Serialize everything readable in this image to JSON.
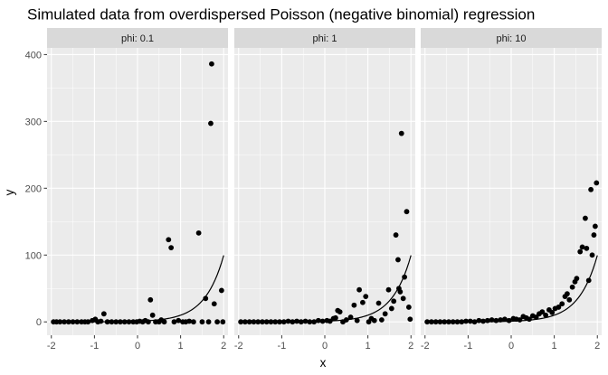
{
  "chart_data": {
    "type": "scatter",
    "title": "Simulated data from overdispersed Poisson (negative binomial) regression",
    "xlabel": "x",
    "ylabel": "y",
    "xlim": [
      -2.1,
      2.1
    ],
    "ylim": [
      -20,
      410
    ],
    "x_ticks": [
      -2,
      -1,
      0,
      1,
      2
    ],
    "y_ticks": [
      0,
      100,
      200,
      300,
      400
    ],
    "grid": true,
    "facet_label_prefix": "phi: ",
    "fit": {
      "type": "line",
      "x_range": [
        -2,
        2
      ],
      "formula": "exp(2.3 * x)"
    },
    "panels": [
      {
        "name": "phi: 0.1",
        "points": [
          [
            -1.95,
            0
          ],
          [
            -1.88,
            0
          ],
          [
            -1.8,
            0
          ],
          [
            -1.7,
            0
          ],
          [
            -1.6,
            0
          ],
          [
            -1.5,
            0
          ],
          [
            -1.4,
            0
          ],
          [
            -1.3,
            0
          ],
          [
            -1.22,
            0
          ],
          [
            -1.15,
            0
          ],
          [
            -1.05,
            2
          ],
          [
            -0.98,
            4
          ],
          [
            -0.92,
            0
          ],
          [
            -0.85,
            1
          ],
          [
            -0.78,
            12
          ],
          [
            -0.7,
            0
          ],
          [
            -0.6,
            0
          ],
          [
            -0.5,
            0
          ],
          [
            -0.4,
            0
          ],
          [
            -0.3,
            0
          ],
          [
            -0.2,
            0
          ],
          [
            -0.1,
            0
          ],
          [
            -0.02,
            0
          ],
          [
            0.05,
            1
          ],
          [
            0.12,
            0
          ],
          [
            0.18,
            2
          ],
          [
            0.25,
            0
          ],
          [
            0.3,
            33
          ],
          [
            0.35,
            10
          ],
          [
            0.42,
            0
          ],
          [
            0.5,
            0
          ],
          [
            0.55,
            3
          ],
          [
            0.62,
            0
          ],
          [
            0.72,
            123
          ],
          [
            0.78,
            111
          ],
          [
            0.85,
            0
          ],
          [
            0.95,
            2
          ],
          [
            1.05,
            0
          ],
          [
            1.12,
            0
          ],
          [
            1.2,
            1
          ],
          [
            1.3,
            0
          ],
          [
            1.42,
            133
          ],
          [
            1.5,
            0
          ],
          [
            1.58,
            35
          ],
          [
            1.65,
            0
          ],
          [
            1.7,
            297
          ],
          [
            1.72,
            386
          ],
          [
            1.78,
            27
          ],
          [
            1.85,
            0
          ],
          [
            1.95,
            47
          ],
          [
            1.98,
            0
          ]
        ]
      },
      {
        "name": "phi: 1",
        "points": [
          [
            -1.95,
            0
          ],
          [
            -1.85,
            0
          ],
          [
            -1.75,
            0
          ],
          [
            -1.65,
            0
          ],
          [
            -1.55,
            0
          ],
          [
            -1.45,
            0
          ],
          [
            -1.35,
            0
          ],
          [
            -1.25,
            0
          ],
          [
            -1.15,
            0
          ],
          [
            -1.05,
            0
          ],
          [
            -0.95,
            0
          ],
          [
            -0.85,
            1
          ],
          [
            -0.75,
            0
          ],
          [
            -0.65,
            1
          ],
          [
            -0.55,
            0
          ],
          [
            -0.45,
            1
          ],
          [
            -0.35,
            0
          ],
          [
            -0.25,
            0
          ],
          [
            -0.15,
            2
          ],
          [
            -0.05,
            1
          ],
          [
            0.05,
            2
          ],
          [
            0.12,
            1
          ],
          [
            0.2,
            5
          ],
          [
            0.25,
            6
          ],
          [
            0.3,
            17
          ],
          [
            0.35,
            15
          ],
          [
            0.42,
            0
          ],
          [
            0.5,
            3
          ],
          [
            0.6,
            7
          ],
          [
            0.68,
            25
          ],
          [
            0.75,
            2
          ],
          [
            0.8,
            48
          ],
          [
            0.88,
            29
          ],
          [
            0.95,
            38
          ],
          [
            1.02,
            0
          ],
          [
            1.08,
            5
          ],
          [
            1.15,
            2
          ],
          [
            1.25,
            28
          ],
          [
            1.32,
            3
          ],
          [
            1.4,
            12
          ],
          [
            1.48,
            48
          ],
          [
            1.55,
            20
          ],
          [
            1.6,
            31
          ],
          [
            1.65,
            130
          ],
          [
            1.7,
            93
          ],
          [
            1.72,
            50
          ],
          [
            1.75,
            45
          ],
          [
            1.78,
            282
          ],
          [
            1.82,
            35
          ],
          [
            1.85,
            67
          ],
          [
            1.9,
            165
          ],
          [
            1.95,
            22
          ],
          [
            1.98,
            4
          ]
        ]
      },
      {
        "name": "phi: 10",
        "points": [
          [
            -1.95,
            0
          ],
          [
            -1.85,
            0
          ],
          [
            -1.75,
            0
          ],
          [
            -1.65,
            0
          ],
          [
            -1.55,
            0
          ],
          [
            -1.45,
            0
          ],
          [
            -1.35,
            0
          ],
          [
            -1.25,
            0
          ],
          [
            -1.15,
            0
          ],
          [
            -1.05,
            1
          ],
          [
            -0.95,
            1
          ],
          [
            -0.85,
            0
          ],
          [
            -0.75,
            2
          ],
          [
            -0.65,
            1
          ],
          [
            -0.55,
            2
          ],
          [
            -0.45,
            3
          ],
          [
            -0.35,
            2
          ],
          [
            -0.25,
            3
          ],
          [
            -0.15,
            4
          ],
          [
            -0.05,
            2
          ],
          [
            0.05,
            5
          ],
          [
            0.12,
            4
          ],
          [
            0.2,
            3
          ],
          [
            0.28,
            8
          ],
          [
            0.35,
            6
          ],
          [
            0.42,
            4
          ],
          [
            0.5,
            9
          ],
          [
            0.58,
            7
          ],
          [
            0.65,
            12
          ],
          [
            0.72,
            15
          ],
          [
            0.8,
            10
          ],
          [
            0.88,
            18
          ],
          [
            0.95,
            14
          ],
          [
            1.02,
            20
          ],
          [
            1.1,
            22
          ],
          [
            1.18,
            27
          ],
          [
            1.25,
            38
          ],
          [
            1.3,
            42
          ],
          [
            1.35,
            33
          ],
          [
            1.42,
            52
          ],
          [
            1.48,
            60
          ],
          [
            1.52,
            65
          ],
          [
            1.6,
            105
          ],
          [
            1.65,
            112
          ],
          [
            1.72,
            155
          ],
          [
            1.75,
            110
          ],
          [
            1.8,
            62
          ],
          [
            1.85,
            198
          ],
          [
            1.88,
            100
          ],
          [
            1.92,
            130
          ],
          [
            1.95,
            143
          ],
          [
            1.98,
            208
          ]
        ]
      }
    ]
  }
}
